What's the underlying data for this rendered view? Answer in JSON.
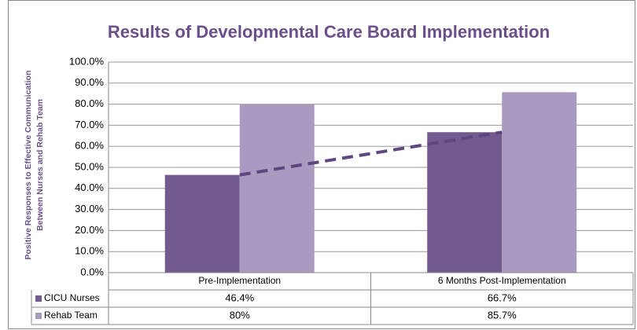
{
  "chart_data": {
    "type": "bar",
    "title": "Results of Developmental Care Board Implementation",
    "y_label": [
      "Positive  Responses to Effective Communication",
      "Between Nurses and Rehab Team"
    ],
    "categories": [
      "Pre-Implementation",
      "6 Months Post-Implementation"
    ],
    "series": [
      {
        "name": "CICU Nurses",
        "color": "#725a8e",
        "values": [
          46.4,
          66.7
        ],
        "value_labels": [
          "46.4%",
          "66.7%"
        ]
      },
      {
        "name": "Rehab Team",
        "color": "#a89bbf",
        "values": [
          80,
          85.7
        ],
        "value_labels": [
          "80%",
          "85.7%"
        ]
      }
    ],
    "trendline": {
      "series": 0,
      "color": "#5e4680",
      "dashed": true
    },
    "ylim": [
      0,
      100
    ],
    "yticks": [
      {
        "value": 0,
        "label": "0.0%"
      },
      {
        "value": 10,
        "label": "10.0%"
      },
      {
        "value": 20,
        "label": "20.0%"
      },
      {
        "value": 30,
        "label": "30.0%"
      },
      {
        "value": 40,
        "label": "40.0%"
      },
      {
        "value": 50,
        "label": "50.0%"
      },
      {
        "value": 60,
        "label": "60.0%"
      },
      {
        "value": 70,
        "label": "70.0%"
      },
      {
        "value": 80,
        "label": "80.0%"
      },
      {
        "value": 90,
        "label": "90.0%"
      },
      {
        "value": 100,
        "label": "100.0%"
      }
    ],
    "grid": true,
    "data_table": true
  }
}
